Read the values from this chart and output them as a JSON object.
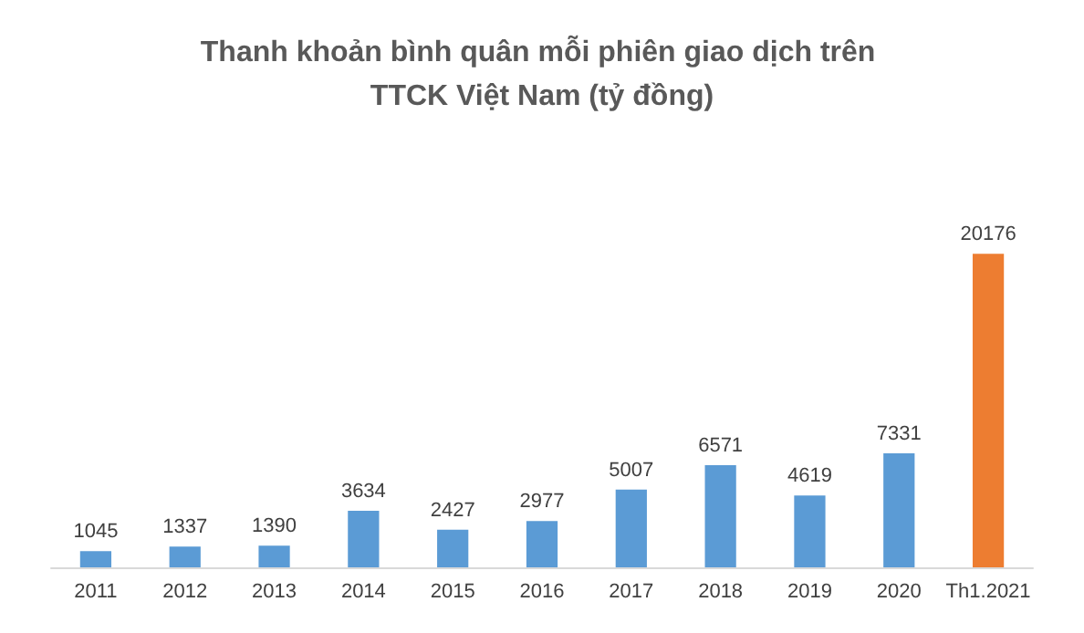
{
  "chart_data": {
    "type": "bar",
    "title": "Thanh khoản bình quân mỗi phiên giao dịch trên TTCK Việt Nam (tỷ đồng)",
    "categories": [
      "2011",
      "2012",
      "2013",
      "2014",
      "2015",
      "2016",
      "2017",
      "2018",
      "2019",
      "2020",
      "Th1.2021"
    ],
    "values": [
      1045,
      1337,
      1390,
      3634,
      2427,
      2977,
      5007,
      6571,
      4619,
      7331,
      20176
    ],
    "colors": [
      "#5b9bd5",
      "#5b9bd5",
      "#5b9bd5",
      "#5b9bd5",
      "#5b9bd5",
      "#5b9bd5",
      "#5b9bd5",
      "#5b9bd5",
      "#5b9bd5",
      "#5b9bd5",
      "#ed7d31"
    ],
    "data_labels": true
  }
}
